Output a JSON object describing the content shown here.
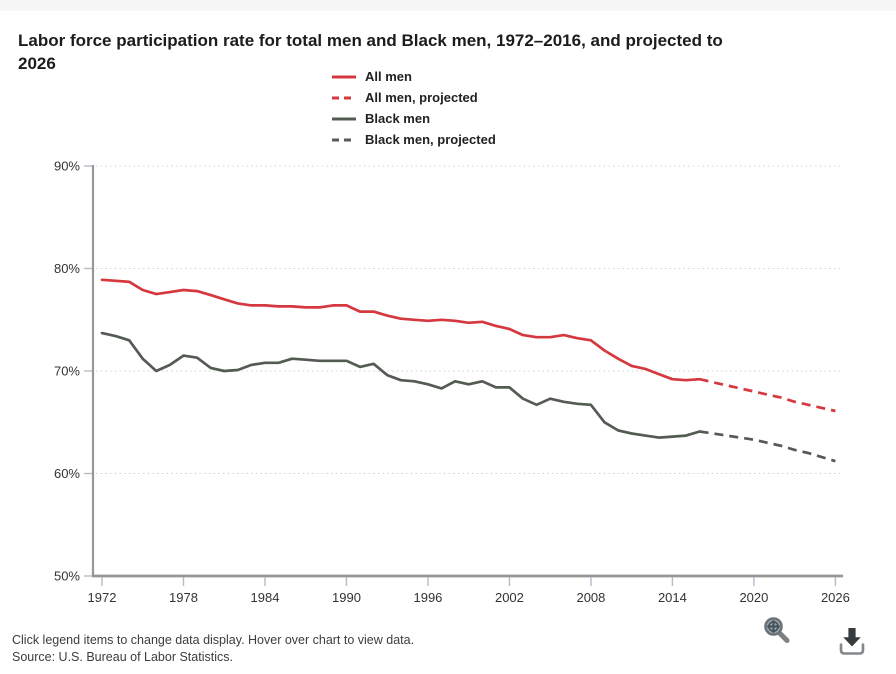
{
  "page": {
    "title": "Labor force participation rate for total men and Black men, 1972–2016, and projected to 2026",
    "footer": {
      "hint": "Click legend items to change data display. Hover over chart to view data.",
      "source": "Source: U.S. Bureau of Labor Statistics."
    }
  },
  "colors": {
    "all_men": "#d5383e",
    "black_men": "#545b53",
    "axis": "#989898",
    "grid": "#d0d0d0",
    "tick": "#b3bdc9",
    "tick_label": "#333333",
    "top_strip": "#f7f7f7"
  },
  "legend": {
    "items": [
      {
        "label": "All men",
        "color": "#d5383e",
        "dashed": false
      },
      {
        "label": "All men, projected",
        "color": "#d5383e",
        "dashed": true
      },
      {
        "label": "Black men",
        "color": "#545b53",
        "dashed": false
      },
      {
        "label": "Black men, projected",
        "color": "#545b53",
        "dashed": true
      }
    ]
  },
  "icons": {
    "zoom": "magnifier-zoom-icon",
    "download": "download-arrow-icon"
  },
  "chart_data": {
    "type": "line",
    "title": "Labor force participation rate for total men and Black men, 1972–2016, and projected to 2026",
    "xlabel": "",
    "ylabel": "Labor force participation rate",
    "unit": "%",
    "ylim": [
      50,
      90
    ],
    "xlim": [
      1972,
      2026
    ],
    "yticks": [
      90,
      80,
      70,
      60,
      50
    ],
    "ytick_labels": [
      "90%",
      "80%",
      "70%",
      "60%",
      "50%"
    ],
    "xticks": [
      1972,
      1978,
      1984,
      1990,
      1996,
      2002,
      2008,
      2014,
      2020,
      2026
    ],
    "grid": "horizontal-dotted",
    "legend_position": "top-center",
    "series": [
      {
        "name": "All men",
        "style": "solid",
        "color": "#d5383e",
        "x": [
          1972,
          1973,
          1974,
          1975,
          1976,
          1977,
          1978,
          1979,
          1980,
          1981,
          1982,
          1983,
          1984,
          1985,
          1986,
          1987,
          1988,
          1989,
          1990,
          1991,
          1992,
          1993,
          1994,
          1995,
          1996,
          1997,
          1998,
          1999,
          2000,
          2001,
          2002,
          2003,
          2004,
          2005,
          2006,
          2007,
          2008,
          2009,
          2010,
          2011,
          2012,
          2013,
          2014,
          2015,
          2016
        ],
        "values": [
          78.9,
          78.8,
          78.7,
          77.9,
          77.5,
          77.7,
          77.9,
          77.8,
          77.4,
          77.0,
          76.6,
          76.4,
          76.4,
          76.3,
          76.3,
          76.2,
          76.2,
          76.4,
          76.4,
          75.8,
          75.8,
          75.4,
          75.1,
          75.0,
          74.9,
          75.0,
          74.9,
          74.7,
          74.8,
          74.4,
          74.1,
          73.5,
          73.3,
          73.3,
          73.5,
          73.2,
          73.0,
          72.0,
          71.2,
          70.5,
          70.2,
          69.7,
          69.2,
          69.1,
          69.2
        ]
      },
      {
        "name": "All men, projected",
        "style": "dashed",
        "color": "#d5383e",
        "x": [
          2016,
          2017,
          2018,
          2019,
          2020,
          2021,
          2022,
          2023,
          2024,
          2025,
          2026
        ],
        "values": [
          69.2,
          68.9,
          68.6,
          68.3,
          68.0,
          67.7,
          67.4,
          67.0,
          66.7,
          66.4,
          66.1
        ]
      },
      {
        "name": "Black men",
        "style": "solid",
        "color": "#545b53",
        "x": [
          1972,
          1973,
          1974,
          1975,
          1976,
          1977,
          1978,
          1979,
          1980,
          1981,
          1982,
          1983,
          1984,
          1985,
          1986,
          1987,
          1988,
          1989,
          1990,
          1991,
          1992,
          1993,
          1994,
          1995,
          1996,
          1997,
          1998,
          1999,
          2000,
          2001,
          2002,
          2003,
          2004,
          2005,
          2006,
          2007,
          2008,
          2009,
          2010,
          2011,
          2012,
          2013,
          2014,
          2015,
          2016
        ],
        "values": [
          73.7,
          73.4,
          73.0,
          71.2,
          70.0,
          70.6,
          71.5,
          71.3,
          70.3,
          70.0,
          70.1,
          70.6,
          70.8,
          70.8,
          71.2,
          71.1,
          71.0,
          71.0,
          71.0,
          70.4,
          70.7,
          69.6,
          69.1,
          69.0,
          68.7,
          68.3,
          69.0,
          68.7,
          69.0,
          68.4,
          68.4,
          67.3,
          66.7,
          67.3,
          67.0,
          66.8,
          66.7,
          65.0,
          64.2,
          63.9,
          63.7,
          63.5,
          63.6,
          63.7,
          64.1
        ]
      },
      {
        "name": "Black men, projected",
        "style": "dashed",
        "color": "#545b53",
        "x": [
          2016,
          2017,
          2018,
          2019,
          2020,
          2021,
          2022,
          2023,
          2024,
          2025,
          2026
        ],
        "values": [
          64.1,
          63.9,
          63.7,
          63.5,
          63.3,
          63.0,
          62.7,
          62.3,
          62.0,
          61.6,
          61.2
        ]
      }
    ]
  }
}
